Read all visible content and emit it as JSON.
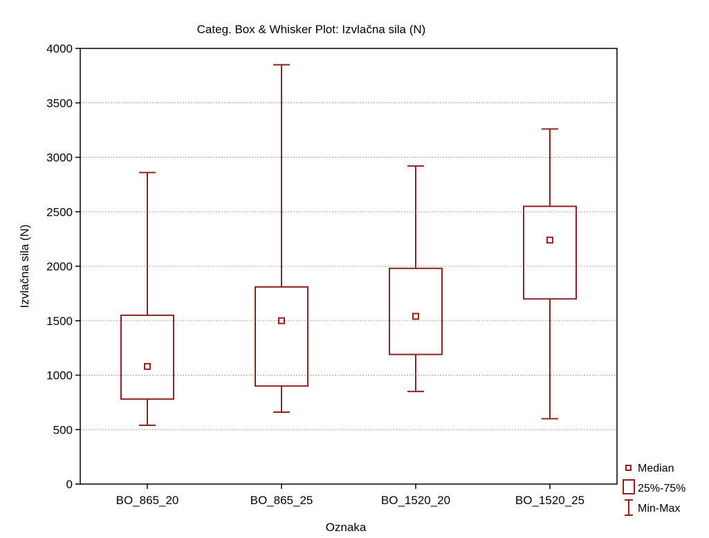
{
  "chart_data": {
    "type": "boxplot",
    "title": "Categ. Box & Whisker Plot: Izvlačna sila (N)",
    "xlabel": "Oznaka",
    "ylabel": "Izvlačna sila (N)",
    "ylim": [
      0,
      4000
    ],
    "yticks": [
      0,
      500,
      1000,
      1500,
      2000,
      2500,
      3000,
      3500,
      4000
    ],
    "grid": "horizontal-dotted",
    "legend_position": "bottom-right",
    "legend": [
      "Median",
      "25%-75%",
      "Min-Max"
    ],
    "categories": [
      "BO_865_20",
      "BO_865_25",
      "BO_1520_20",
      "BO_1520_25"
    ],
    "series": [
      {
        "category": "BO_865_20",
        "min": 540,
        "q1": 780,
        "median": 1080,
        "q3": 1550,
        "max": 2860
      },
      {
        "category": "BO_865_25",
        "min": 660,
        "q1": 900,
        "median": 1500,
        "q3": 1810,
        "max": 3850
      },
      {
        "category": "BO_1520_20",
        "min": 850,
        "q1": 1190,
        "median": 1540,
        "q3": 1980,
        "max": 2920
      },
      {
        "category": "BO_1520_25",
        "min": 600,
        "q1": 1700,
        "median": 2240,
        "q3": 2550,
        "max": 3260
      }
    ],
    "colors": {
      "box": "#8b2323",
      "grid": "#a0a0a0",
      "axis": "#000000"
    }
  }
}
